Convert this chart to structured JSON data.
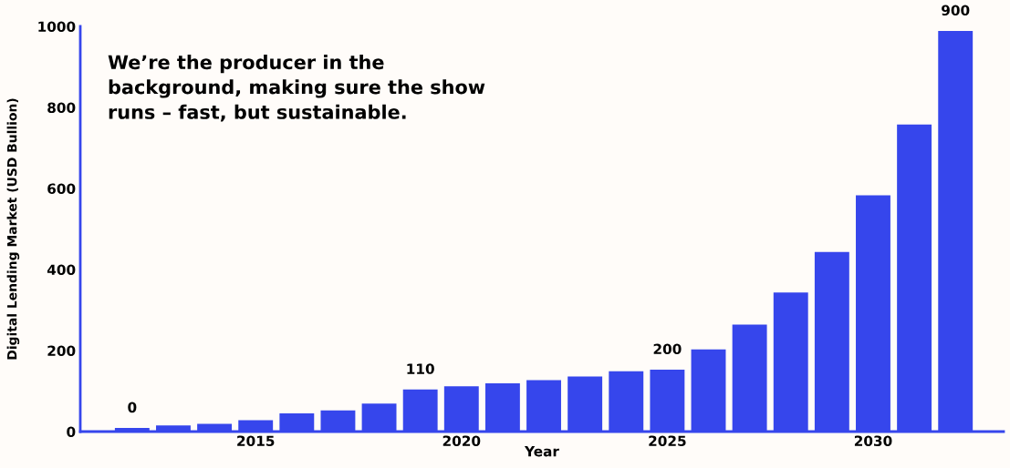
{
  "chart_data": {
    "type": "bar",
    "xlabel": "Year",
    "ylabel": "Digital Lending Market (USD Bullion)",
    "x": [
      2012,
      2013,
      2014,
      2015,
      2016,
      2017,
      2018,
      2019,
      2020,
      2021,
      2022,
      2023,
      2024,
      2025,
      2026,
      2027,
      2028,
      2029,
      2030,
      2031,
      2032
    ],
    "values": [
      9,
      15,
      19,
      28,
      45,
      52,
      69,
      104,
      112,
      119,
      127,
      136,
      149,
      153,
      203,
      264,
      343,
      443,
      583,
      758,
      989
    ],
    "color": "#3646ec",
    "xlim": [
      2010.74,
      2033.17
    ],
    "xticks": [
      2015,
      2020,
      2025,
      2030
    ],
    "ylim": [
      0,
      1000
    ],
    "yticks": [
      0,
      200,
      400,
      600,
      800,
      1000
    ],
    "grid": false,
    "annotations": [
      "We’re the producer in the background, making sure the show runs – fast, but sustainable.",
      {
        "text": "0",
        "x": 2012,
        "y": 9
      },
      {
        "text": "110",
        "x": 2019,
        "y": 104
      },
      {
        "text": "200",
        "x": 2025,
        "y": 153
      },
      {
        "text": "900",
        "x": 2032,
        "y": 989
      }
    ]
  }
}
